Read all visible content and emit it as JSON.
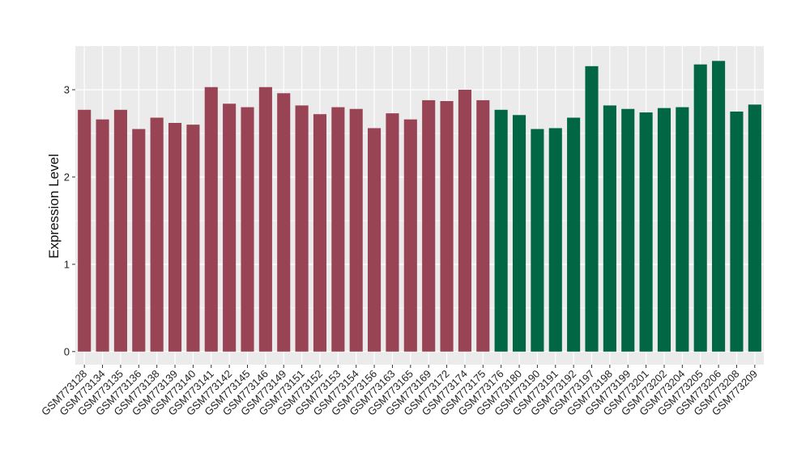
{
  "chart_data": {
    "type": "bar",
    "title": "",
    "xlabel": "",
    "ylabel": "Expression Level",
    "ylim": [
      -0.15,
      3.5
    ],
    "yticks": [
      0,
      1,
      2,
      3
    ],
    "grid": true,
    "legend": "none",
    "panel_background": "#EBEBEB",
    "grid_color": "#FFFFFF",
    "categories": [
      "GSM773128",
      "GSM773134",
      "GSM773135",
      "GSM773136",
      "GSM773138",
      "GSM773139",
      "GSM773140",
      "GSM773141",
      "GSM773142",
      "GSM773145",
      "GSM773146",
      "GSM773149",
      "GSM773151",
      "GSM773152",
      "GSM773153",
      "GSM773154",
      "GSM773156",
      "GSM773163",
      "GSM773165",
      "GSM773169",
      "GSM773172",
      "GSM773174",
      "GSM773175",
      "GSM773176",
      "GSM773180",
      "GSM773190",
      "GSM773191",
      "GSM773192",
      "GSM773197",
      "GSM773198",
      "GSM773199",
      "GSM773201",
      "GSM773202",
      "GSM773204",
      "GSM773205",
      "GSM773206",
      "GSM773208",
      "GSM773209"
    ],
    "values": [
      2.77,
      2.66,
      2.77,
      2.55,
      2.68,
      2.62,
      2.6,
      3.03,
      2.84,
      2.8,
      3.03,
      2.96,
      2.82,
      2.72,
      2.8,
      2.78,
      2.56,
      2.73,
      2.66,
      2.88,
      2.87,
      3.0,
      2.88,
      2.77,
      2.71,
      2.55,
      2.56,
      2.68,
      3.27,
      2.82,
      2.78,
      2.74,
      2.79,
      2.8,
      3.29,
      3.33,
      2.75,
      2.83
    ],
    "groups": [
      {
        "color": "#994455",
        "start": 0,
        "end": 22
      },
      {
        "color": "#006644",
        "start": 23,
        "end": 37
      }
    ]
  }
}
